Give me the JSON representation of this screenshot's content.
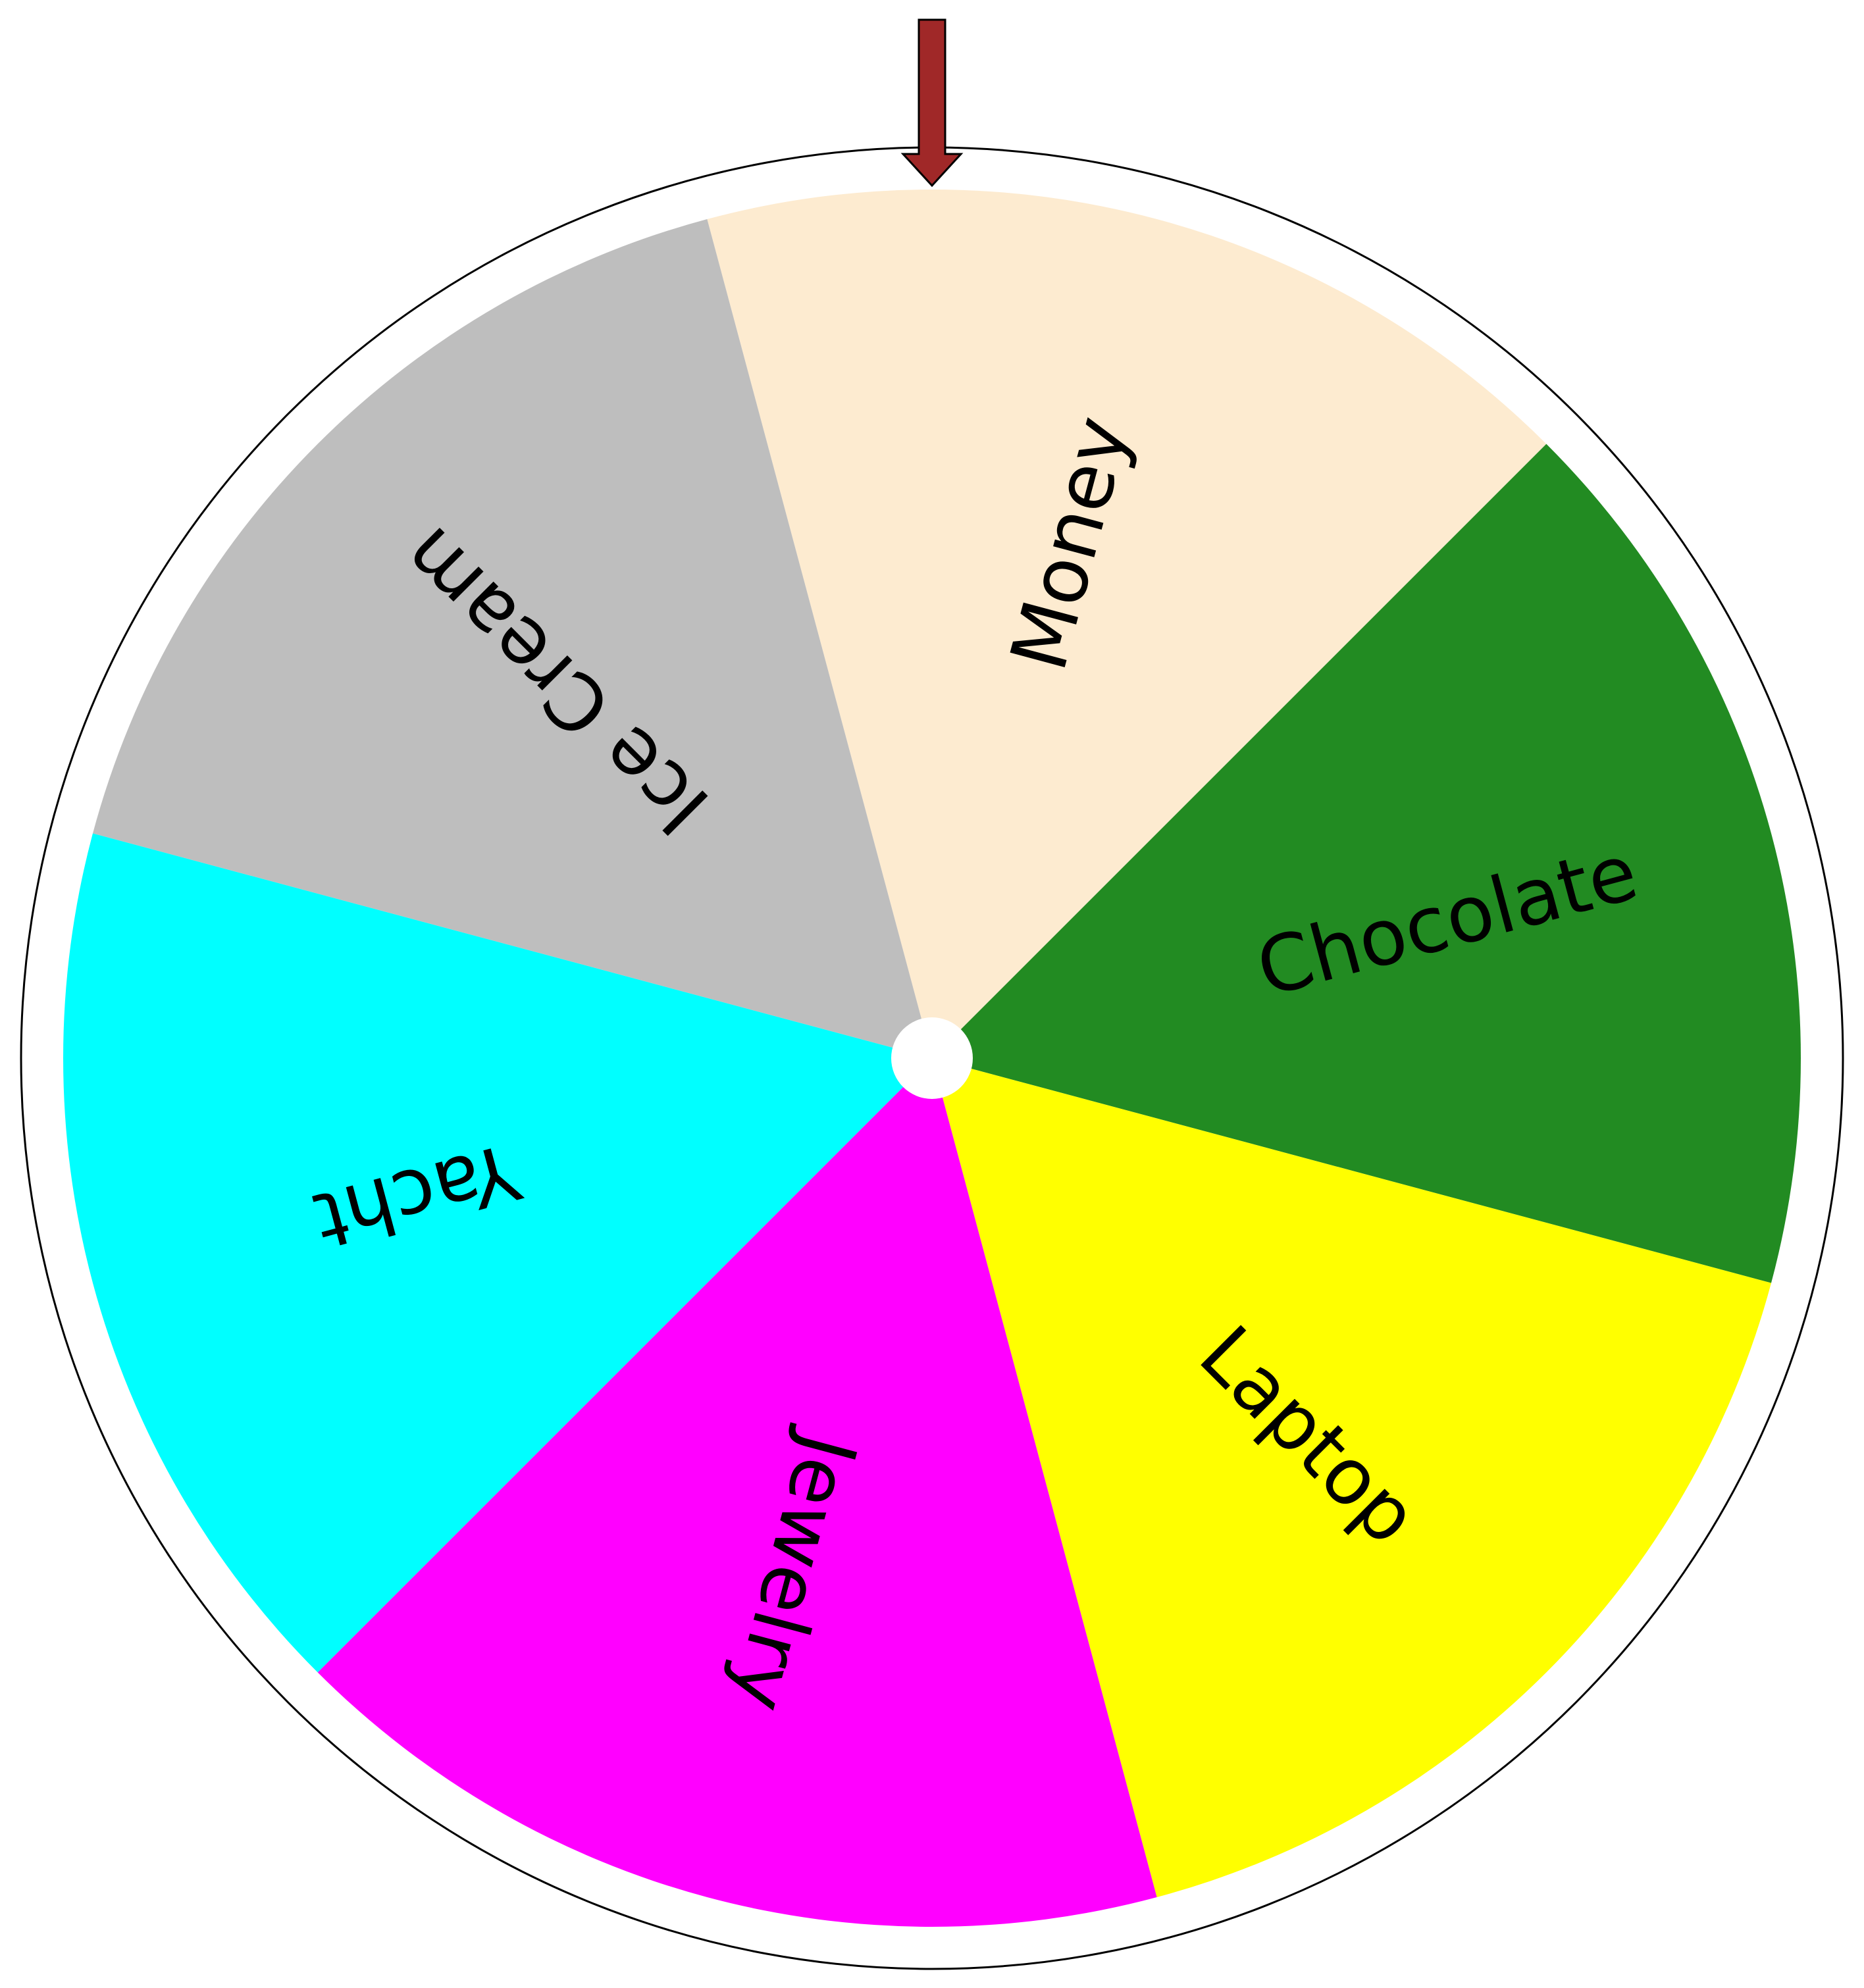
{
  "wheel": {
    "segments": [
      {
        "label": "Money",
        "color": "#FDEBD0"
      },
      {
        "label": "Chocolate",
        "color": "#228B22"
      },
      {
        "label": "Laptop",
        "color": "#FFFF00"
      },
      {
        "label": "Jewelry",
        "color": "#FF00FF"
      },
      {
        "label": "Yacht",
        "color": "#00FFFF"
      },
      {
        "label": "Ice Cream",
        "color": "#BEBEBE"
      }
    ],
    "rim_color": "#FFFFFF",
    "rim_outline_color": "#000000",
    "hub_color": "#FFFFFF"
  },
  "pointer": {
    "icon": "down-arrow-icon",
    "color": "#A02828",
    "outline_color": "#000000"
  }
}
